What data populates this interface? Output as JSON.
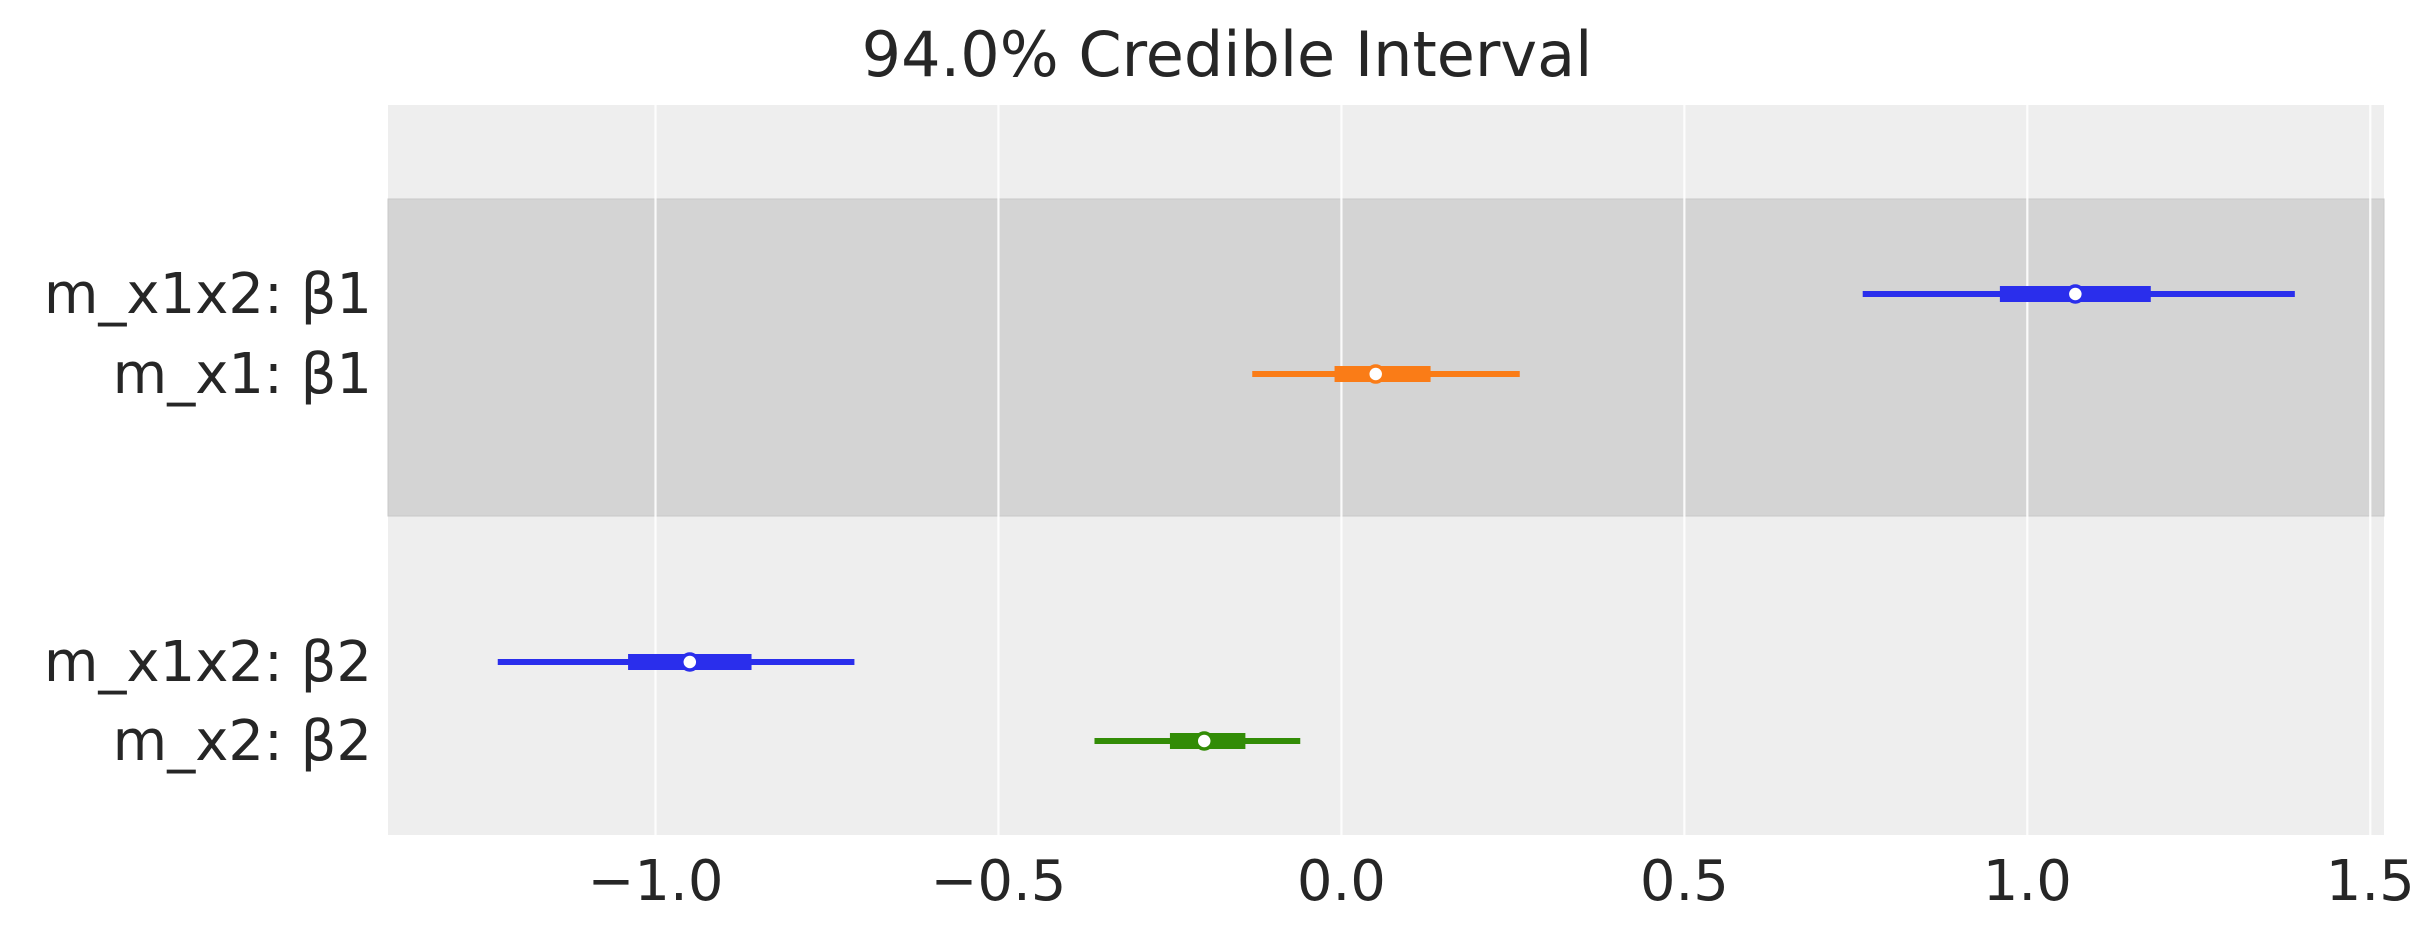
{
  "chart_data": {
    "type": "forest",
    "title": "94.0% Credible Interval",
    "xlabel": "",
    "ylabel": "",
    "xlim": [
      -1.39,
      1.52
    ],
    "xticks": [
      -1.0,
      -0.5,
      0.0,
      0.5,
      1.0,
      1.5
    ],
    "xtick_labels": [
      "−1.0",
      "−0.5",
      "0.0",
      "0.5",
      "1.0",
      "1.5"
    ],
    "grid": true,
    "rows": [
      {
        "label": "m_x1x2: β1",
        "group": 0,
        "color": "#2a2eec",
        "hdi_low": 0.76,
        "hdi_high": 1.39,
        "iqr_low": 0.96,
        "iqr_high": 1.18,
        "median": 1.07
      },
      {
        "label": "m_x1: β1",
        "group": 0,
        "color": "#fa7c17",
        "hdi_low": -0.13,
        "hdi_high": 0.26,
        "iqr_low": -0.01,
        "iqr_high": 0.13,
        "median": 0.05
      },
      {
        "label": "m_x1x2: β2",
        "group": 1,
        "color": "#2a2eec",
        "hdi_low": -1.23,
        "hdi_high": -0.71,
        "iqr_low": -1.04,
        "iqr_high": -0.86,
        "median": -0.95
      },
      {
        "label": "m_x2: β2",
        "group": 1,
        "color": "#328c06",
        "hdi_low": -0.36,
        "hdi_high": -0.06,
        "iqr_low": -0.25,
        "iqr_high": -0.14,
        "median": -0.2
      }
    ],
    "colors": {
      "plot_background": "#eeeeee",
      "group_band": "#d4d4d4",
      "grid_line": "#ffffff",
      "text": "#262626"
    }
  }
}
